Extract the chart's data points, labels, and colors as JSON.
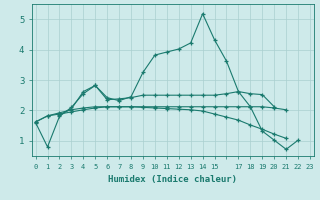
{
  "xlabel": "Humidex (Indice chaleur)",
  "bg_color": "#ceeaea",
  "line_color": "#1a7a6e",
  "grid_color": "#aacfcf",
  "ylim": [
    0.5,
    5.5
  ],
  "yticks": [
    1,
    2,
    3,
    4,
    5
  ],
  "xlim": [
    -0.3,
    23.3
  ],
  "x_ticks": [
    0,
    1,
    2,
    3,
    4,
    5,
    6,
    7,
    8,
    9,
    10,
    11,
    12,
    13,
    14,
    15,
    16,
    17,
    18,
    19,
    20,
    21,
    22,
    23
  ],
  "x_tick_labels": [
    "0",
    "1",
    "2",
    "3",
    "4",
    "5",
    "6",
    "7",
    "8",
    "9",
    "10",
    "11",
    "12",
    "13",
    "14",
    "15",
    "",
    "17",
    "18",
    "19",
    "20",
    "21",
    "22",
    "23"
  ],
  "lines": [
    {
      "x": [
        0,
        1,
        2,
        3,
        4,
        5,
        6,
        7,
        8,
        9,
        10,
        11,
        12,
        13,
        14,
        15,
        16,
        17,
        18,
        19,
        20,
        21,
        22
      ],
      "y": [
        1.6,
        0.8,
        1.8,
        2.1,
        2.55,
        2.82,
        2.42,
        2.32,
        2.45,
        3.25,
        3.82,
        3.92,
        4.02,
        4.22,
        5.18,
        4.32,
        3.62,
        2.62,
        2.12,
        1.32,
        1.02,
        0.72,
        1.02
      ]
    },
    {
      "x": [
        2,
        3,
        4,
        5,
        6,
        7,
        8,
        9,
        10,
        11,
        12,
        13,
        14,
        15,
        16,
        17,
        18,
        19,
        20
      ],
      "y": [
        1.85,
        2.05,
        2.62,
        2.82,
        2.35,
        2.38,
        2.42,
        2.5,
        2.5,
        2.5,
        2.5,
        2.5,
        2.5,
        2.5,
        2.55,
        2.62,
        2.55,
        2.52,
        2.12
      ]
    },
    {
      "x": [
        0,
        1,
        2,
        3,
        4,
        5,
        6,
        7,
        8,
        9,
        10,
        11,
        12,
        13,
        14,
        15,
        16,
        17,
        18,
        19,
        20,
        21
      ],
      "y": [
        1.62,
        1.82,
        1.92,
        2.02,
        2.08,
        2.12,
        2.12,
        2.12,
        2.12,
        2.12,
        2.12,
        2.12,
        2.12,
        2.12,
        2.12,
        2.12,
        2.12,
        2.12,
        2.12,
        2.12,
        2.08,
        2.02
      ]
    },
    {
      "x": [
        0,
        1,
        2,
        3,
        4,
        5,
        6,
        7,
        8,
        9,
        10,
        11,
        12,
        13,
        14,
        15,
        16,
        17,
        18,
        19,
        20,
        21
      ],
      "y": [
        1.62,
        1.82,
        1.88,
        1.95,
        2.02,
        2.08,
        2.12,
        2.12,
        2.12,
        2.1,
        2.08,
        2.06,
        2.04,
        2.02,
        1.98,
        1.88,
        1.78,
        1.68,
        1.52,
        1.38,
        1.22,
        1.08
      ]
    }
  ]
}
